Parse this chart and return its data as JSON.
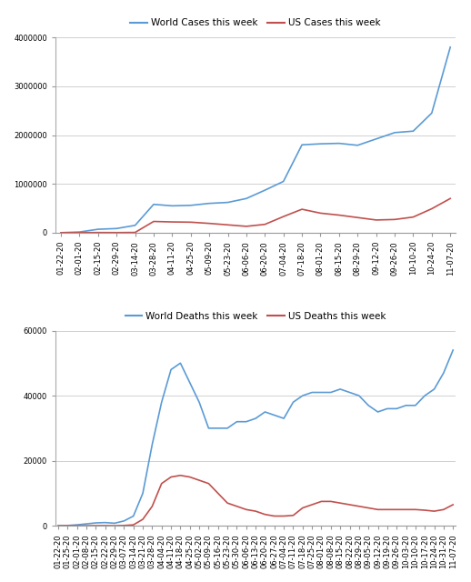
{
  "x_labels_top": [
    "01-22-20",
    "02-01-20",
    "02-15-20",
    "02-29-20",
    "03-14-20",
    "03-28-20",
    "04-11-20",
    "04-25-20",
    "05-09-20",
    "05-23-20",
    "06-06-20",
    "06-20-20",
    "07-04-20",
    "07-18-20",
    "08-01-20",
    "08-15-20",
    "08-29-20",
    "09-12-20",
    "09-26-20",
    "10-10-20",
    "10-24-20",
    "11-07-20"
  ],
  "world_cases": [
    500,
    14000,
    70000,
    85000,
    150000,
    580000,
    550000,
    560000,
    600000,
    620000,
    700000,
    870000,
    1050000,
    1800000,
    1820000,
    1830000,
    1790000,
    1920000,
    2050000,
    2080000,
    2450000,
    3800000
  ],
  "us_cases": [
    100,
    1500,
    3000,
    2000,
    5000,
    230000,
    220000,
    215000,
    190000,
    160000,
    130000,
    170000,
    330000,
    480000,
    400000,
    360000,
    310000,
    260000,
    270000,
    320000,
    490000,
    700000
  ],
  "x_labels_bottom": [
    "01-22-20",
    "01-25-20",
    "02-01-20",
    "02-08-20",
    "02-15-20",
    "02-22-20",
    "02-29-20",
    "03-07-20",
    "03-14-20",
    "03-21-20",
    "03-28-20",
    "04-04-20",
    "04-11-20",
    "04-18-20",
    "04-25-20",
    "05-02-20",
    "05-09-20",
    "05-16-20",
    "05-23-20",
    "05-30-20",
    "06-06-20",
    "06-13-20",
    "06-20-20",
    "06-27-20",
    "07-04-20",
    "07-11-20",
    "07-18-20",
    "07-25-20",
    "08-01-20",
    "08-08-20",
    "08-15-20",
    "08-22-20",
    "08-29-20",
    "09-05-20",
    "09-12-20",
    "09-19-20",
    "09-26-20",
    "10-03-20",
    "10-10-20",
    "10-17-20",
    "10-24-20",
    "10-31-20",
    "11-07-20"
  ],
  "world_deaths": [
    50,
    100,
    300,
    600,
    900,
    1000,
    800,
    1500,
    3000,
    10000,
    25000,
    38000,
    48000,
    50000,
    44000,
    38000,
    30000,
    30000,
    30000,
    32000,
    32000,
    33000,
    35000,
    34000,
    33000,
    38000,
    40000,
    41000,
    41000,
    41000,
    42000,
    41000,
    40000,
    37000,
    35000,
    36000,
    36000,
    37000,
    37000,
    40000,
    42000,
    47000,
    54000
  ],
  "us_deaths": [
    0,
    0,
    10,
    20,
    50,
    60,
    30,
    100,
    300,
    2000,
    6000,
    13000,
    15000,
    15500,
    15000,
    14000,
    13000,
    10000,
    7000,
    6000,
    5000,
    4500,
    3500,
    3000,
    3000,
    3200,
    5500,
    6500,
    7500,
    7500,
    7000,
    6500,
    6000,
    5500,
    5000,
    5000,
    5000,
    5000,
    5000,
    4800,
    4500,
    5000,
    6500
  ],
  "world_cases_color": "#5b9bd5",
  "us_cases_color": "#c0504d",
  "world_deaths_color": "#5b9bd5",
  "us_deaths_color": "#c0504d",
  "cases_ylim": [
    0,
    4000000
  ],
  "deaths_ylim": [
    0,
    60000
  ],
  "cases_yticks": [
    0,
    1000000,
    2000000,
    3000000,
    4000000
  ],
  "deaths_yticks": [
    0,
    20000,
    40000,
    60000
  ],
  "legend1_labels": [
    "World Cases this week",
    "US Cases this week"
  ],
  "legend2_labels": [
    "World Deaths this week",
    "US Deaths this week"
  ],
  "bg_color": "#ffffff",
  "grid_color": "#d0d0d0",
  "tick_fontsize": 6.0,
  "legend_fontsize": 7.5
}
